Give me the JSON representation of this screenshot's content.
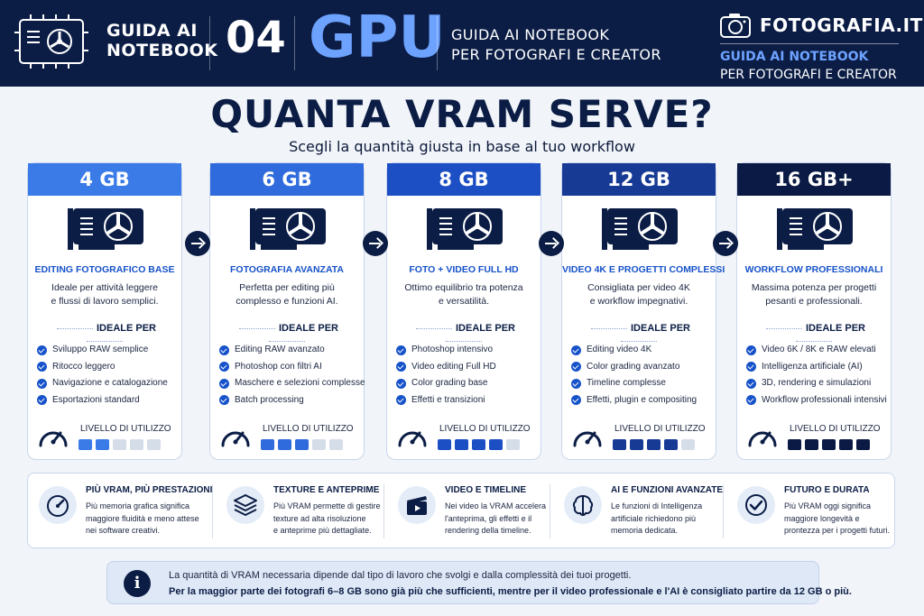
{
  "header": {
    "left_title_line1": "GUIDA AI",
    "left_title_line2": "NOTEBOOK",
    "number": "04",
    "topic": "GPU",
    "subtitle_line1": "GUIDA AI NOTEBOOK",
    "subtitle_line2": "PER FOTOGRAFI E CREATOR",
    "brand": "FOTOGRAFIA.IT",
    "brand_line1": "GUIDA AI NOTEBOOK",
    "brand_line2": "PER FOTOGRAFI E CREATOR"
  },
  "title": "QUANTA VRAM SERVE?",
  "subtitle": "Scegli la quantità giusta in base al tuo workflow",
  "ideal_label": "IDEALE PER",
  "level_label": "LIVELLO DI UTILIZZO",
  "cards": [
    {
      "vram": "4 GB",
      "color": "#3b7be8",
      "title": "EDITING FOTOGRAFICO BASE",
      "desc_line1": "Ideale per attività leggere",
      "desc_line2": "e flussi di lavoro semplici.",
      "items": [
        "Sviluppo RAW semplice",
        "Ritocco leggero",
        "Navigazione e catalogazione",
        "Esportazioni standard"
      ],
      "level": 2,
      "bar_color": "#3b7be8"
    },
    {
      "vram": "6 GB",
      "color": "#2f6bdc",
      "title": "FOTOGRAFIA AVANZATA",
      "desc_line1": "Perfetta per editing più",
      "desc_line2": "complesso e funzioni AI.",
      "items": [
        "Editing RAW avanzato",
        "Photoshop con filtri AI",
        "Maschere e selezioni complesse",
        "Batch processing"
      ],
      "level": 3,
      "bar_color": "#2f6bdc"
    },
    {
      "vram": "8 GB",
      "color": "#1d4fc4",
      "title": "FOTO + VIDEO FULL HD",
      "desc_line1": "Ottimo equilibrio tra potenza",
      "desc_line2": "e versatilità.",
      "items": [
        "Photoshop intensivo",
        "Video editing Full HD",
        "Color grading base",
        "Effetti e transizioni"
      ],
      "level": 4,
      "bar_color": "#1d4fc4"
    },
    {
      "vram": "12 GB",
      "color": "#173a94",
      "title": "VIDEO 4K E PROGETTI COMPLESSI",
      "desc_line1": "Consigliata per video 4K",
      "desc_line2": "e workflow impegnativi.",
      "items": [
        "Editing video 4K",
        "Color grading avanzato",
        "Timeline complesse",
        "Effetti, plugin e compositing"
      ],
      "level": 4,
      "bar_color": "#173a94"
    },
    {
      "vram": "16 GB+",
      "color": "#0b1a44",
      "title": "WORKFLOW PROFESSIONALI",
      "desc_line1": "Massima potenza per progetti",
      "desc_line2": "pesanti e professionali.",
      "items": [
        "Video 6K / 8K e RAW elevati",
        "Intelligenza artificiale (AI)",
        "3D, rendering e simulazioni",
        "Workflow professionali intensivi"
      ],
      "level": 5,
      "bar_color": "#0b1a44"
    }
  ],
  "benefits": [
    {
      "icon": "speedometer-icon",
      "title": "PIÙ VRAM, PIÙ PRESTAZIONI",
      "line1": "Più memoria grafica significa",
      "line2": "maggiore fluidità e meno attese",
      "line3": "nei software creativi."
    },
    {
      "icon": "layers-icon",
      "title": "TEXTURE E ANTEPRIME",
      "line1": "Più VRAM permette di gestire",
      "line2": "texture ad alta risoluzione",
      "line3": "e anteprime più dettagliate."
    },
    {
      "icon": "clapperboard-icon",
      "title": "VIDEO E TIMELINE",
      "line1": "Nei video la VRAM accelera",
      "line2": "l'anteprima, gli effetti e il",
      "line3": "rendering della timeline."
    },
    {
      "icon": "brain-icon",
      "title": "AI E FUNZIONI AVANZATE",
      "line1": "Le funzioni di Intelligenza",
      "line2": "artificiale richiedono più",
      "line3": "memoria dedicata."
    },
    {
      "icon": "check-circle-icon",
      "title": "FUTURO E DURATA",
      "line1": "Più VRAM oggi significa",
      "line2": "maggiore longevità e",
      "line3": "prontezza per i progetti futuri."
    }
  ],
  "note": {
    "line1": "La quantità di VRAM necessaria dipende dal tipo di lavoro che svolgi e dalla complessità dei tuoi progetti.",
    "line2": "Per la maggior parte dei fotografi 6–8 GB sono già più che sufficienti, mentre per il video professionale e l'AI è consigliato partire da 12 GB o più."
  }
}
